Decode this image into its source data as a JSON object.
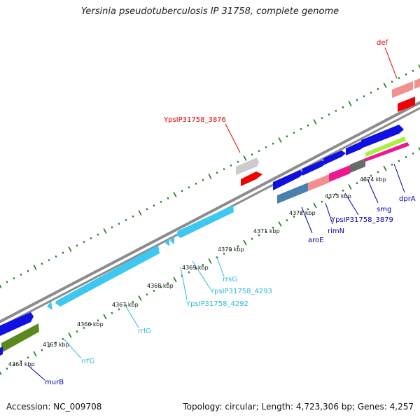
{
  "title": "Yersinia pseudotuberculosis IP 31758, complete genome",
  "footer": {
    "accession": "Accession: NC_009708",
    "summary": "Topology: circular; Length: 4,723,306 bp; Genes: 4,257"
  },
  "colors": {
    "backbone": "#8c8c8c",
    "ticks": "#1e7a1e",
    "rrna": "#3cc8f0",
    "gene_blue": "#1010e0",
    "gene_red": "#f00000",
    "gene_pink": "#f29090",
    "gene_magenta": "#f01890",
    "gene_steel": "#4a7fb0",
    "gene_olive": "#5a8a1e",
    "gene_grey": "#6a6a6a",
    "gene_lightgrey": "#cccccc",
    "gene_lime": "#a8f040"
  },
  "scale_labels": [
    "4364 kbp",
    "4365 kbp",
    "4366 kbp",
    "4367 kbp",
    "4368 kbp",
    "4369 kbp",
    "4370 kbp",
    "4371 kbp",
    "4372 kbp",
    "4373 kbp",
    "4374 kbp"
  ],
  "gene_labels": [
    {
      "text": "def",
      "color": "#e00000"
    },
    {
      "text": "YpsIP31758_3876",
      "color": "#e00000"
    },
    {
      "text": "aroE",
      "color": "#0000aa"
    },
    {
      "text": "rimN",
      "color": "#0000aa"
    },
    {
      "text": "YpsIP31758_3879",
      "color": "#0000aa"
    },
    {
      "text": "smg",
      "color": "#0000aa"
    },
    {
      "text": "dprA",
      "color": "#0000aa"
    },
    {
      "text": "rrsG",
      "color": "#30b8e0"
    },
    {
      "text": "YpsIP31758_4293",
      "color": "#30b8e0"
    },
    {
      "text": "YpsIP31758_4292",
      "color": "#30b8e0"
    },
    {
      "text": "rrlG",
      "color": "#30b8e0"
    },
    {
      "text": "rrfG",
      "color": "#30b8e0"
    },
    {
      "text": "murB",
      "color": "#0000aa"
    }
  ]
}
